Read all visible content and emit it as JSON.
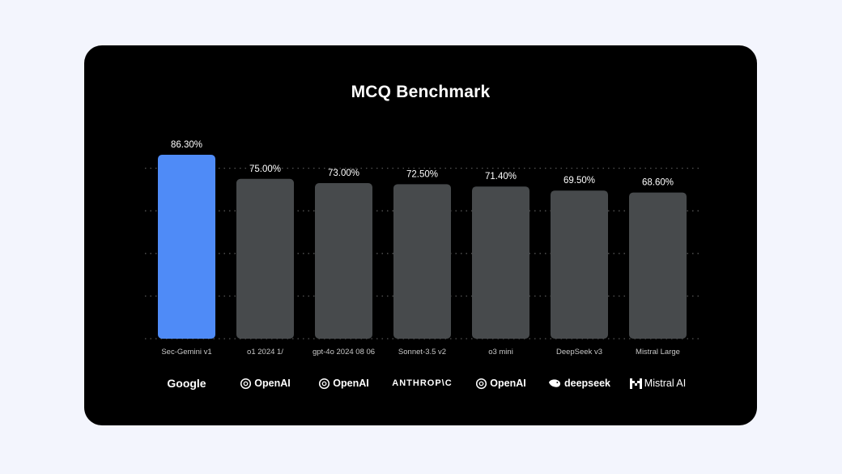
{
  "chart_data": {
    "type": "bar",
    "title": "MCQ Benchmark",
    "categories": [
      "Sec-Gemini v1",
      "o1 2024 1/",
      "gpt-4o 2024 08 06",
      "Sonnet-3.5 v2",
      "o3 mini",
      "DeepSeek v3",
      "Mistral Large"
    ],
    "values": [
      86.3,
      75.0,
      73.0,
      72.5,
      71.4,
      69.5,
      68.6
    ],
    "value_labels": [
      "86.30%",
      "75.00%",
      "73.00%",
      "72.50%",
      "71.40%",
      "69.50%",
      "68.60%"
    ],
    "providers": [
      "Google",
      "OpenAI",
      "OpenAI",
      "ANTHROP\\C",
      "OpenAI",
      "deepseek",
      "Mistral AI"
    ],
    "highlight_index": 0,
    "ylim": [
      0,
      90
    ],
    "grid": true,
    "xlabel": "",
    "ylabel": "",
    "colors": {
      "highlight": "#4f8bf7",
      "bar": "#474a4c",
      "background": "#000000",
      "page": "#f3f5fd",
      "grid": "#555555",
      "text": "#ffffff",
      "tick_text": "#c8c8c8"
    }
  }
}
